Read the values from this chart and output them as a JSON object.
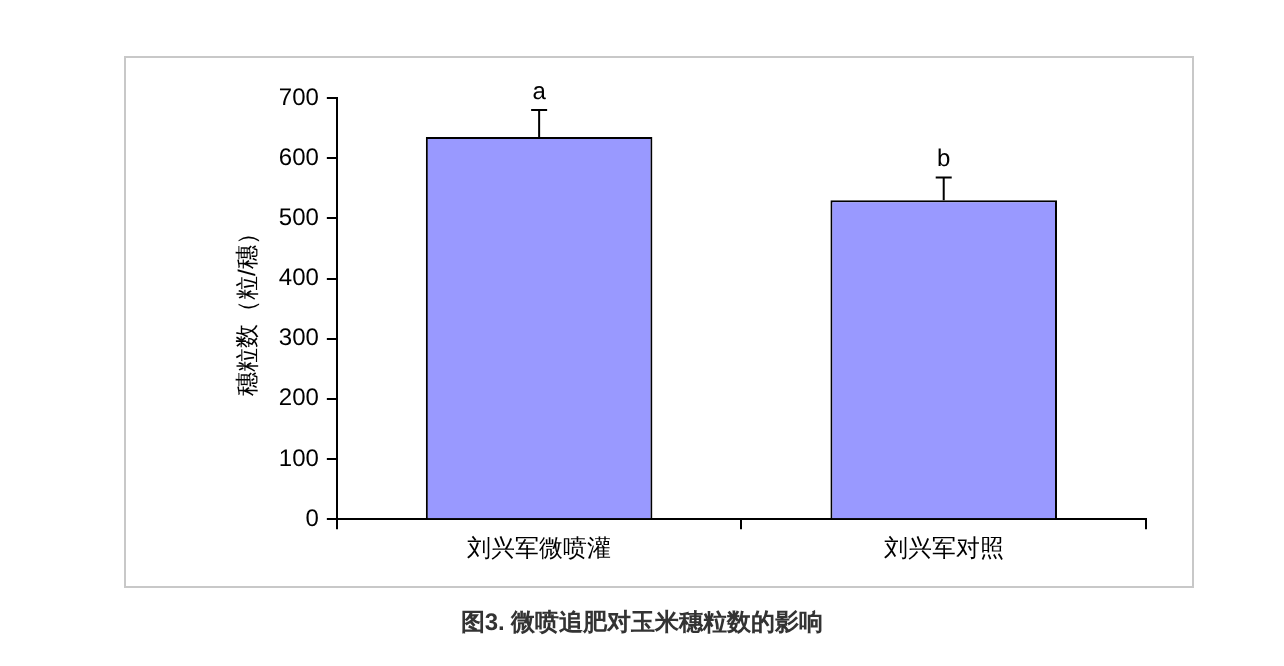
{
  "chart_data": {
    "type": "bar",
    "title": "图3. 微喷追肥对玉米穗粒数的影响",
    "ylabel": "穗粒数（粒/穗）",
    "categories": [
      "刘兴军微喷灌",
      "刘兴军对照"
    ],
    "values": [
      635,
      530
    ],
    "errors": [
      [
        635,
        680
      ],
      [
        530,
        568
      ]
    ],
    "color": "#9999ff",
    "ylim": [
      0,
      700
    ],
    "yticks": [
      0,
      100,
      200,
      300,
      400,
      500,
      600,
      700
    ],
    "grid": false,
    "legend": false,
    "annotations": [
      "a",
      "b"
    ]
  }
}
